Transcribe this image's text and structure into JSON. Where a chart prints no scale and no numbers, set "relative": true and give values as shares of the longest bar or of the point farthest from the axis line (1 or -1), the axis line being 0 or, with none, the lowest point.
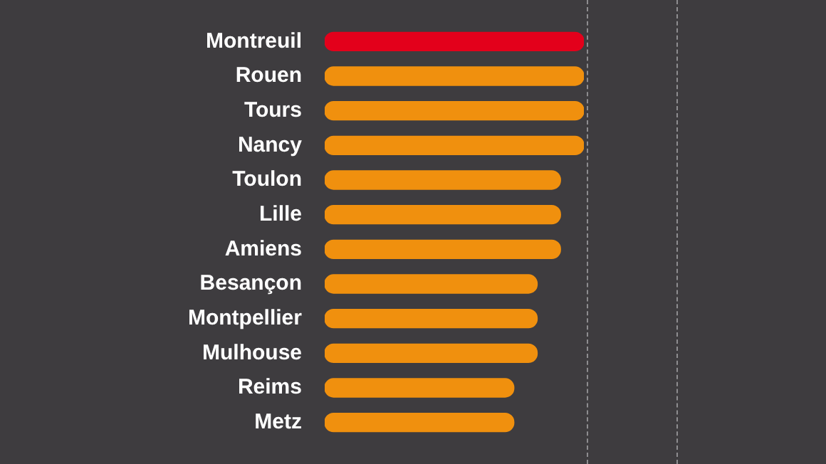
{
  "chart_data": {
    "type": "bar",
    "orientation": "horizontal",
    "relative": true,
    "categories": [
      "Montreuil",
      "Rouen",
      "Tours",
      "Nancy",
      "Toulon",
      "Lille",
      "Amiens",
      "Besançon",
      "Montpellier",
      "Mulhouse",
      "Reims",
      "Metz"
    ],
    "values": [
      1,
      1,
      1,
      1,
      0.91,
      0.91,
      0.91,
      0.82,
      0.82,
      0.82,
      0.73,
      0.73
    ],
    "colors": [
      "#e3001b",
      "#f0900e",
      "#f0900e",
      "#f0900e",
      "#f0900e",
      "#f0900e",
      "#f0900e",
      "#f0900e",
      "#f0900e",
      "#f0900e",
      "#f0900e",
      "#f0900e"
    ],
    "legend": false
  }
}
